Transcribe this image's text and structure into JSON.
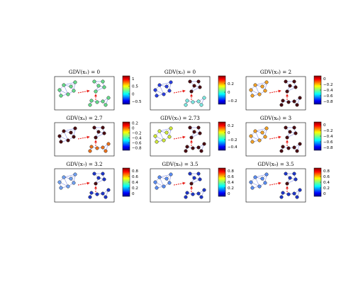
{
  "figure": {
    "edge_color": "#3b4fd8",
    "arrow_color": "#e8221c",
    "node_stroke": "#000000",
    "colormap": "jet"
  },
  "panels": [
    {
      "title": "GDV(x₁) = 0",
      "colorbar": {
        "range": [
          -0.7,
          1.2
        ],
        "ticks": [
          {
            "value": 1,
            "label": "1"
          },
          {
            "value": 0.5,
            "label": "0.5"
          },
          {
            "value": 0,
            "label": "0"
          },
          {
            "value": -0.5,
            "label": "−0.5"
          }
        ]
      },
      "node_colors": {
        "left": "#66d98a",
        "right": "#66d98a",
        "hub": "#66d98a",
        "bottom": "#66d98a"
      }
    },
    {
      "title": "GDV(x₂) = 0",
      "colorbar": {
        "range": [
          -0.28,
          0.38
        ],
        "ticks": [
          {
            "value": 0.2,
            "label": "0.2"
          },
          {
            "value": 0,
            "label": "0"
          },
          {
            "value": -0.2,
            "label": "−0.2"
          }
        ]
      },
      "node_colors": {
        "left": "#2b3fe0",
        "right": "#4a0d12",
        "hub": "#4a0d12",
        "bottom": "#7ee8e0"
      }
    },
    {
      "title": "GDV(x₃) = 2",
      "colorbar": {
        "range": [
          -0.9,
          0.1
        ],
        "ticks": [
          {
            "value": 0,
            "label": "0"
          },
          {
            "value": -0.2,
            "label": "−0.2"
          },
          {
            "value": -0.4,
            "label": "−0.4"
          },
          {
            "value": -0.6,
            "label": "−0.6"
          },
          {
            "value": -0.8,
            "label": "−0.8"
          }
        ]
      },
      "node_colors": {
        "left": "#f0a028",
        "right": "#4a0d12",
        "hub": "#4a0d12",
        "bottom": "#4a0d12"
      }
    },
    {
      "title": "GDV(x₄) = 2.7",
      "colorbar": {
        "range": [
          -0.9,
          0.25
        ],
        "ticks": [
          {
            "value": 0.2,
            "label": "0.2"
          },
          {
            "value": 0,
            "label": "0"
          },
          {
            "value": -0.2,
            "label": "−0.2"
          },
          {
            "value": -0.4,
            "label": "−0.4"
          },
          {
            "value": -0.6,
            "label": "−0.6"
          },
          {
            "value": -0.8,
            "label": "−0.8"
          }
        ]
      },
      "node_colors": {
        "left": "#4a0d12",
        "right": "#4a0d12",
        "hub": "#4a0d12",
        "bottom": "#e8701c"
      }
    },
    {
      "title": "GDV(x₅) = 2.73",
      "colorbar": {
        "range": [
          -0.5,
          0.3
        ],
        "ticks": [
          {
            "value": 0.2,
            "label": "0.2"
          },
          {
            "value": 0,
            "label": "0"
          },
          {
            "value": -0.2,
            "label": "−0.2"
          },
          {
            "value": -0.4,
            "label": "−0.4"
          }
        ]
      },
      "node_colors": {
        "left": "#cfe83a",
        "right": "#4a0d12",
        "hub": "#4a0d12",
        "bottom": "#4a0d12"
      }
    },
    {
      "title": "GDV(x₆) = 3",
      "colorbar": {
        "range": [
          -0.9,
          0.1
        ],
        "ticks": [
          {
            "value": 0,
            "label": "0"
          },
          {
            "value": -0.2,
            "label": "−0.2"
          },
          {
            "value": -0.4,
            "label": "−0.4"
          },
          {
            "value": -0.6,
            "label": "−0.6"
          },
          {
            "value": -0.8,
            "label": "−0.8"
          }
        ]
      },
      "node_colors": {
        "left": "#f0a028",
        "right": "#4a0d12",
        "hub": "#4a0d12",
        "bottom": "#4a0d12"
      }
    },
    {
      "title": "GDV(x₇) = 3.2",
      "colorbar": {
        "range": [
          -0.1,
          0.9
        ],
        "ticks": [
          {
            "value": 0.8,
            "label": "0.8"
          },
          {
            "value": 0.6,
            "label": "0.6"
          },
          {
            "value": 0.4,
            "label": "0.4"
          },
          {
            "value": 0.2,
            "label": "0.2"
          },
          {
            "value": 0,
            "label": "0"
          }
        ]
      },
      "node_colors": {
        "left": "#6fa0f0",
        "right": "#1f36c8",
        "hub": "#4a0d12",
        "bottom": "#1f36c8"
      }
    },
    {
      "title": "GDV(x₈) = 3.5",
      "colorbar": {
        "range": [
          -0.1,
          0.9
        ],
        "ticks": [
          {
            "value": 0.8,
            "label": "0.8"
          },
          {
            "value": 0.6,
            "label": "0.6"
          },
          {
            "value": 0.4,
            "label": "0.4"
          },
          {
            "value": 0.2,
            "label": "0.2"
          },
          {
            "value": 0,
            "label": "0"
          }
        ]
      },
      "node_colors": {
        "left": "#5a8cf0",
        "right": "#1f36c8",
        "hub": "#4a0d12",
        "bottom": "#1f36c8"
      }
    },
    {
      "title": "GDV(x₉) = 3.5",
      "colorbar": {
        "range": [
          -0.1,
          0.9
        ],
        "ticks": [
          {
            "value": 0.8,
            "label": "0.8"
          },
          {
            "value": 0.6,
            "label": "0.6"
          },
          {
            "value": 0.4,
            "label": "0.4"
          },
          {
            "value": 0.2,
            "label": "0.2"
          },
          {
            "value": 0,
            "label": "0"
          }
        ]
      },
      "node_colors": {
        "left": "#5a8cf0",
        "right": "#1f36c8",
        "hub": "#4a0d12",
        "bottom": "#1f36c8"
      }
    }
  ]
}
